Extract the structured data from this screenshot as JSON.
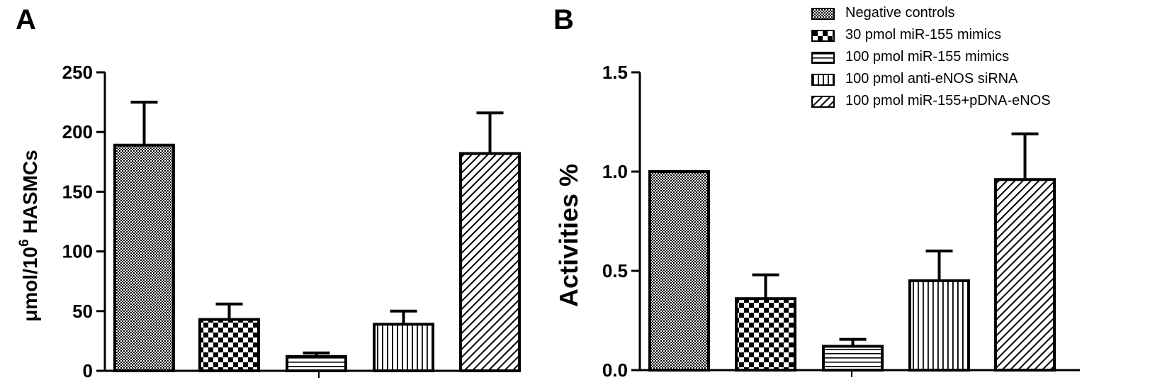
{
  "panel_a_label": "A",
  "panel_b_label": "B",
  "legend": [
    {
      "label": "Negative controls",
      "pattern": "fine-dots"
    },
    {
      "label": "30 pmol miR-155 mimics",
      "pattern": "checker"
    },
    {
      "label": "100 pmol miR-155 mimics",
      "pattern": "horizontal-lines"
    },
    {
      "label": "100 pmol anti-eNOS siRNA",
      "pattern": "vertical-lines"
    },
    {
      "label": "100 pmol miR-155+pDNA-eNOS",
      "pattern": "diagonal-lines"
    }
  ],
  "chart_data": [
    {
      "type": "bar",
      "panel": "A",
      "ylabel": "μmol/10^6 HASMCs",
      "ylim": [
        0,
        250
      ],
      "yticks": [
        "0",
        "50",
        "100",
        "150",
        "200",
        "250"
      ],
      "ytick_values": [
        0,
        50,
        100,
        150,
        200,
        250
      ],
      "categories": [
        "Negative controls",
        "30 pmol miR-155 mimics",
        "100 pmol miR-155 mimics",
        "100 pmol anti-eNOS siRNA",
        "100 pmol miR-155+pDNA-eNOS"
      ],
      "values": [
        189,
        43,
        12,
        39,
        182
      ],
      "errors": [
        36,
        13,
        3,
        11,
        34
      ]
    },
    {
      "type": "bar",
      "panel": "B",
      "ylabel": "Activities  %",
      "ylim": [
        0,
        1.5
      ],
      "yticks": [
        "0.0",
        "0.5",
        "1.0",
        "1.5"
      ],
      "ytick_values": [
        0,
        0.5,
        1.0,
        1.5
      ],
      "categories": [
        "Negative controls",
        "30 pmol miR-155 mimics",
        "100 pmol miR-155 mimics",
        "100 pmol anti-eNOS siRNA",
        "100 pmol miR-155+pDNA-eNOS"
      ],
      "values": [
        1.0,
        0.36,
        0.12,
        0.45,
        0.96
      ],
      "errors": [
        0.0,
        0.12,
        0.035,
        0.15,
        0.23
      ]
    }
  ]
}
